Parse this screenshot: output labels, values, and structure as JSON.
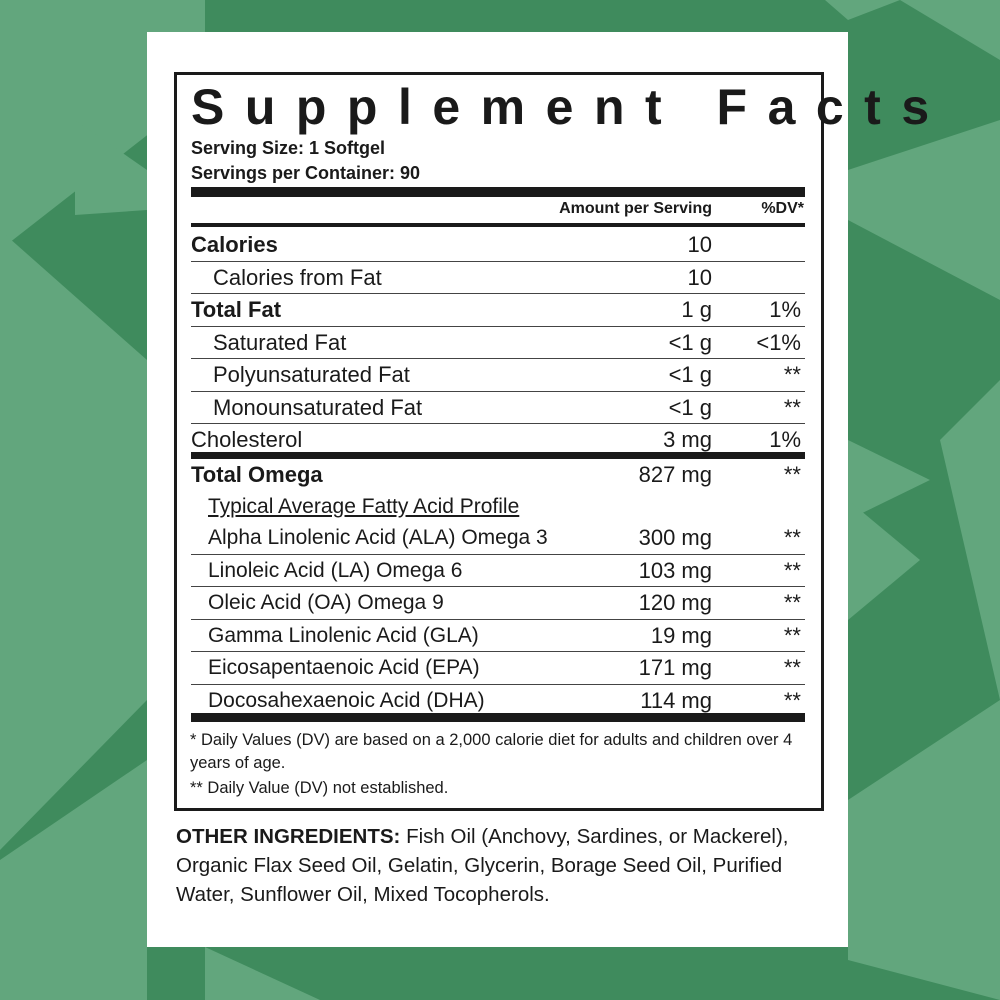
{
  "colors": {
    "background": "#3f8b5d",
    "pattern": "#62a67d",
    "panel": "#ffffff",
    "text": "#1a1a1a"
  },
  "title": "Supplement Facts",
  "serving_size": "Serving Size: 1 Softgel",
  "servings_per_container": "Servings per Container: 90",
  "columns": {
    "amount": "Amount per Serving",
    "dv": "%DV*"
  },
  "nutrients": [
    {
      "name": "Calories",
      "amount": "10",
      "dv": ""
    },
    {
      "name": "Calories from Fat",
      "amount": "10",
      "dv": ""
    },
    {
      "name": "Total Fat",
      "amount": "1 g",
      "dv": "1%"
    },
    {
      "name": "Saturated Fat",
      "amount": "<1 g",
      "dv": "<1%"
    },
    {
      "name": "Polyunsaturated Fat",
      "amount": "<1 g",
      "dv": "**"
    },
    {
      "name": "Monounsaturated Fat",
      "amount": "<1 g",
      "dv": "**"
    },
    {
      "name": "Cholesterol",
      "amount": "3 mg",
      "dv": "1%"
    }
  ],
  "omega": {
    "name": "Total Omega",
    "amount": "827 mg",
    "dv": "**",
    "profile_label": "Typical Average Fatty Acid Profile",
    "acids": [
      {
        "name": "Alpha Linolenic Acid (ALA) Omega 3",
        "amount": "300 mg",
        "dv": "**"
      },
      {
        "name": "Linoleic Acid (LA) Omega 6",
        "amount": "103 mg",
        "dv": "**"
      },
      {
        "name": "Oleic Acid (OA) Omega 9",
        "amount": "120 mg",
        "dv": "**"
      },
      {
        "name": "Gamma Linolenic Acid (GLA)",
        "amount": "19 mg",
        "dv": "**"
      },
      {
        "name": "Eicosapentaenoic Acid (EPA)",
        "amount": "171 mg",
        "dv": "**"
      },
      {
        "name": "Docosahexaenoic Acid (DHA)",
        "amount": "114 mg",
        "dv": "**"
      }
    ]
  },
  "footnotes": {
    "dv_basis": "* Daily Values (DV) are based on a 2,000 calorie diet for adults and children over 4 years of age.",
    "not_established": "** Daily Value (DV) not established."
  },
  "other_ingredients": {
    "label": "OTHER INGREDIENTS:",
    "text": " Fish Oil (Anchovy, Sardines, or Mackerel), Organic Flax Seed Oil, Gelatin, Glycerin, Borage Seed Oil, Purified Water, Sunflower Oil, Mixed Tocopherols."
  }
}
